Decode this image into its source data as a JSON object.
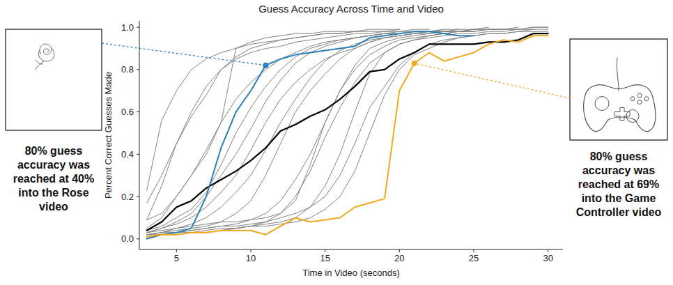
{
  "chart_data": {
    "type": "line",
    "title": "Guess Accuracy Across Time and Video",
    "x_label": "Time in Video (seconds)",
    "y_label": "Percent Correct Guesses Made",
    "x": [
      3,
      4,
      5,
      6,
      7,
      8,
      9,
      10,
      11,
      12,
      13,
      14,
      15,
      16,
      17,
      18,
      19,
      20,
      21,
      22,
      23,
      24,
      25,
      26,
      27,
      28,
      29,
      30
    ],
    "xlim": [
      2.5,
      31
    ],
    "xticks": [
      5,
      10,
      15,
      20,
      25,
      30
    ],
    "ylim": [
      -0.05,
      1.03
    ],
    "yticks": [
      {
        "value": 0,
        "label": "0.0"
      },
      {
        "value": 0.2,
        "label": "0.2"
      },
      {
        "value": 0.4,
        "label": "0.4"
      },
      {
        "value": 0.6,
        "label": "0.6"
      },
      {
        "value": 0.8,
        "label": "0.8"
      },
      {
        "value": 1,
        "label": "1.0"
      }
    ],
    "grid": false,
    "series": [
      {
        "color": "#808080",
        "values": [
          0.23,
          0.56,
          0.7,
          0.8,
          0.85,
          0.88,
          0.9,
          0.92,
          0.93,
          0.94,
          0.95,
          0.96,
          0.97,
          0.97,
          0.98,
          0.98,
          0.98,
          0.99,
          null,
          null,
          null,
          null,
          null,
          null,
          null,
          null,
          null,
          null
        ]
      },
      {
        "color": "#808080",
        "values": [
          0.17,
          0.3,
          0.45,
          0.58,
          0.68,
          0.8,
          0.85,
          0.88,
          0.9,
          0.91,
          0.93,
          0.94,
          0.95,
          0.96,
          0.97,
          0.97,
          0.98,
          0.98,
          0.99,
          0.99,
          null,
          null,
          null,
          null,
          null,
          null,
          null,
          null
        ]
      },
      {
        "color": "#808080",
        "values": [
          0.09,
          0.12,
          0.2,
          0.3,
          0.42,
          0.55,
          0.66,
          0.74,
          0.8,
          0.85,
          0.88,
          0.91,
          0.93,
          0.94,
          0.95,
          0.96,
          0.97,
          0.97,
          0.98,
          0.98,
          0.98,
          0.99,
          null,
          null,
          null,
          null,
          null,
          null
        ]
      },
      {
        "color": "#808080",
        "values": [
          0.05,
          0.1,
          0.2,
          0.3,
          0.4,
          0.55,
          0.9,
          0.93,
          0.95,
          0.96,
          0.97,
          0.97,
          0.98,
          0.98,
          0.98,
          0.99,
          0.99,
          0.99,
          null,
          null,
          null,
          null,
          null,
          null,
          null,
          null,
          null,
          null
        ]
      },
      {
        "color": "#808080",
        "values": [
          0.03,
          0.05,
          0.08,
          0.12,
          0.2,
          0.3,
          0.4,
          0.52,
          0.65,
          0.75,
          0.83,
          0.88,
          0.91,
          0.93,
          0.95,
          0.96,
          0.97,
          0.98,
          0.98,
          0.98,
          0.99,
          0.99,
          0.99,
          1.0,
          null,
          null,
          null,
          null
        ]
      },
      {
        "color": "#808080",
        "values": [
          0.02,
          0.03,
          0.05,
          0.07,
          0.1,
          0.15,
          0.22,
          0.3,
          0.42,
          0.55,
          0.66,
          0.76,
          0.84,
          0.89,
          0.92,
          0.94,
          0.95,
          0.96,
          0.97,
          0.97,
          0.98,
          0.98,
          0.99,
          0.99,
          0.99,
          null,
          null,
          null
        ]
      },
      {
        "color": "#808080",
        "values": [
          0.02,
          0.03,
          0.04,
          0.05,
          0.06,
          0.08,
          0.12,
          0.18,
          0.3,
          0.45,
          0.6,
          0.7,
          0.78,
          0.85,
          0.9,
          0.93,
          0.95,
          0.96,
          0.97,
          0.98,
          0.98,
          0.98,
          0.99,
          0.99,
          0.99,
          1.0,
          null,
          null
        ]
      },
      {
        "color": "#808080",
        "values": [
          0.01,
          0.02,
          0.03,
          0.04,
          0.05,
          0.06,
          0.07,
          0.09,
          0.12,
          0.18,
          0.28,
          0.4,
          0.55,
          0.7,
          0.8,
          0.87,
          0.91,
          0.94,
          0.95,
          0.96,
          0.97,
          0.98,
          0.98,
          0.99,
          0.99,
          0.99,
          1.0,
          1.0
        ]
      },
      {
        "color": "#808080",
        "values": [
          0.02,
          0.02,
          0.03,
          0.03,
          0.04,
          0.05,
          0.05,
          0.06,
          0.07,
          0.08,
          0.1,
          0.15,
          0.25,
          0.4,
          0.6,
          0.78,
          0.88,
          0.92,
          0.94,
          0.96,
          0.97,
          0.98,
          0.98,
          0.99,
          0.99,
          0.99,
          1.0,
          1.0
        ]
      },
      {
        "color": "#808080",
        "values": [
          0.01,
          0.02,
          0.02,
          0.03,
          0.03,
          0.04,
          0.05,
          0.06,
          0.06,
          0.07,
          0.08,
          0.1,
          0.14,
          0.2,
          0.32,
          0.5,
          0.68,
          0.8,
          0.87,
          0.9,
          0.93,
          0.95,
          0.96,
          0.97,
          0.97,
          0.98,
          0.99,
          0.99
        ]
      },
      {
        "color": "#808080",
        "values": [
          0.03,
          0.04,
          0.05,
          0.06,
          0.07,
          0.08,
          0.08,
          0.09,
          0.1,
          0.12,
          0.18,
          0.35,
          0.55,
          0.7,
          0.82,
          0.9,
          0.93,
          0.95,
          0.96,
          0.97,
          0.98,
          0.98,
          0.98,
          null,
          null,
          null,
          null,
          null
        ]
      },
      {
        "color": "#808080",
        "values": [
          0.02,
          0.03,
          0.03,
          0.04,
          0.05,
          0.06,
          0.06,
          0.07,
          0.08,
          0.1,
          0.12,
          0.15,
          0.2,
          0.3,
          0.45,
          0.62,
          0.72,
          0.82,
          0.88,
          0.92,
          0.94,
          0.95,
          0.96,
          0.97,
          0.97,
          0.98,
          0.98,
          0.98
        ]
      },
      {
        "color": "#808080",
        "values": [
          0.09,
          0.25,
          0.45,
          0.6,
          0.72,
          0.8,
          0.86,
          0.9,
          0.92,
          0.94,
          0.95,
          0.96,
          0.97,
          0.97,
          0.98,
          null,
          null,
          null,
          null,
          null,
          null,
          null,
          null,
          null,
          null,
          null,
          null,
          null
        ]
      },
      {
        "color": "#808080",
        "values": [
          0.03,
          0.05,
          0.07,
          0.1,
          0.15,
          0.22,
          0.3,
          0.42,
          0.55,
          0.66,
          0.74,
          0.8,
          0.85,
          0.88,
          0.9,
          0.93,
          0.95,
          0.96,
          0.97,
          0.98,
          0.98,
          null,
          null,
          null,
          null,
          null,
          null,
          null
        ]
      },
      {
        "color": "#808080",
        "values": [
          0.01,
          0.02,
          0.02,
          0.03,
          0.03,
          0.04,
          0.05,
          0.06,
          0.08,
          0.12,
          0.2,
          0.32,
          0.48,
          0.62,
          0.74,
          0.83,
          0.88,
          0.92,
          0.94,
          0.95,
          0.96,
          0.97,
          0.97,
          0.98,
          0.98,
          0.99,
          0.99,
          null
        ]
      },
      {
        "color": "#808080",
        "values": [
          0.04,
          0.06,
          0.1,
          0.14,
          0.22,
          0.35,
          0.5,
          0.62,
          0.72,
          0.8,
          0.86,
          0.9,
          0.92,
          0.94,
          0.95,
          0.96,
          0.97,
          0.97,
          0.98,
          0.98,
          0.99,
          null,
          null,
          null,
          null,
          null,
          null,
          null
        ]
      },
      {
        "color": "#000000",
        "values": [
          0.04,
          0.08,
          0.15,
          0.18,
          0.24,
          0.28,
          0.32,
          0.37,
          0.43,
          0.51,
          0.54,
          0.58,
          0.61,
          0.66,
          0.72,
          0.79,
          0.8,
          0.85,
          0.88,
          0.92,
          0.92,
          0.92,
          0.92,
          0.93,
          0.93,
          0.94,
          0.97,
          0.97
        ]
      },
      {
        "color": "#2a7fba",
        "values": [
          0.0,
          0.02,
          0.03,
          0.05,
          0.2,
          0.43,
          0.6,
          0.7,
          0.82,
          0.85,
          0.87,
          0.88,
          0.89,
          0.9,
          0.91,
          0.95,
          0.96,
          0.97,
          0.98,
          0.98,
          0.97,
          0.96,
          0.96,
          null,
          null,
          null,
          null,
          null
        ]
      },
      {
        "color": "#f2a81d",
        "values": [
          0.01,
          0.02,
          0.02,
          0.03,
          0.03,
          0.04,
          0.04,
          0.04,
          0.02,
          0.06,
          0.1,
          0.08,
          0.09,
          0.1,
          0.15,
          0.17,
          0.19,
          0.7,
          0.83,
          0.88,
          0.84,
          0.86,
          0.88,
          0.92,
          0.94,
          0.93,
          0.96,
          0.96
        ]
      }
    ],
    "annotations": [
      {
        "text": "80% guess accuracy was reached at 40% into the Rose video",
        "x": 11,
        "y": 0.82,
        "color": "#2a7fba"
      },
      {
        "text": "80% guess accuracy was reached at 69% into the Game Controller video",
        "x": 21,
        "y": 0.83,
        "color": "#f2a81d"
      }
    ]
  }
}
